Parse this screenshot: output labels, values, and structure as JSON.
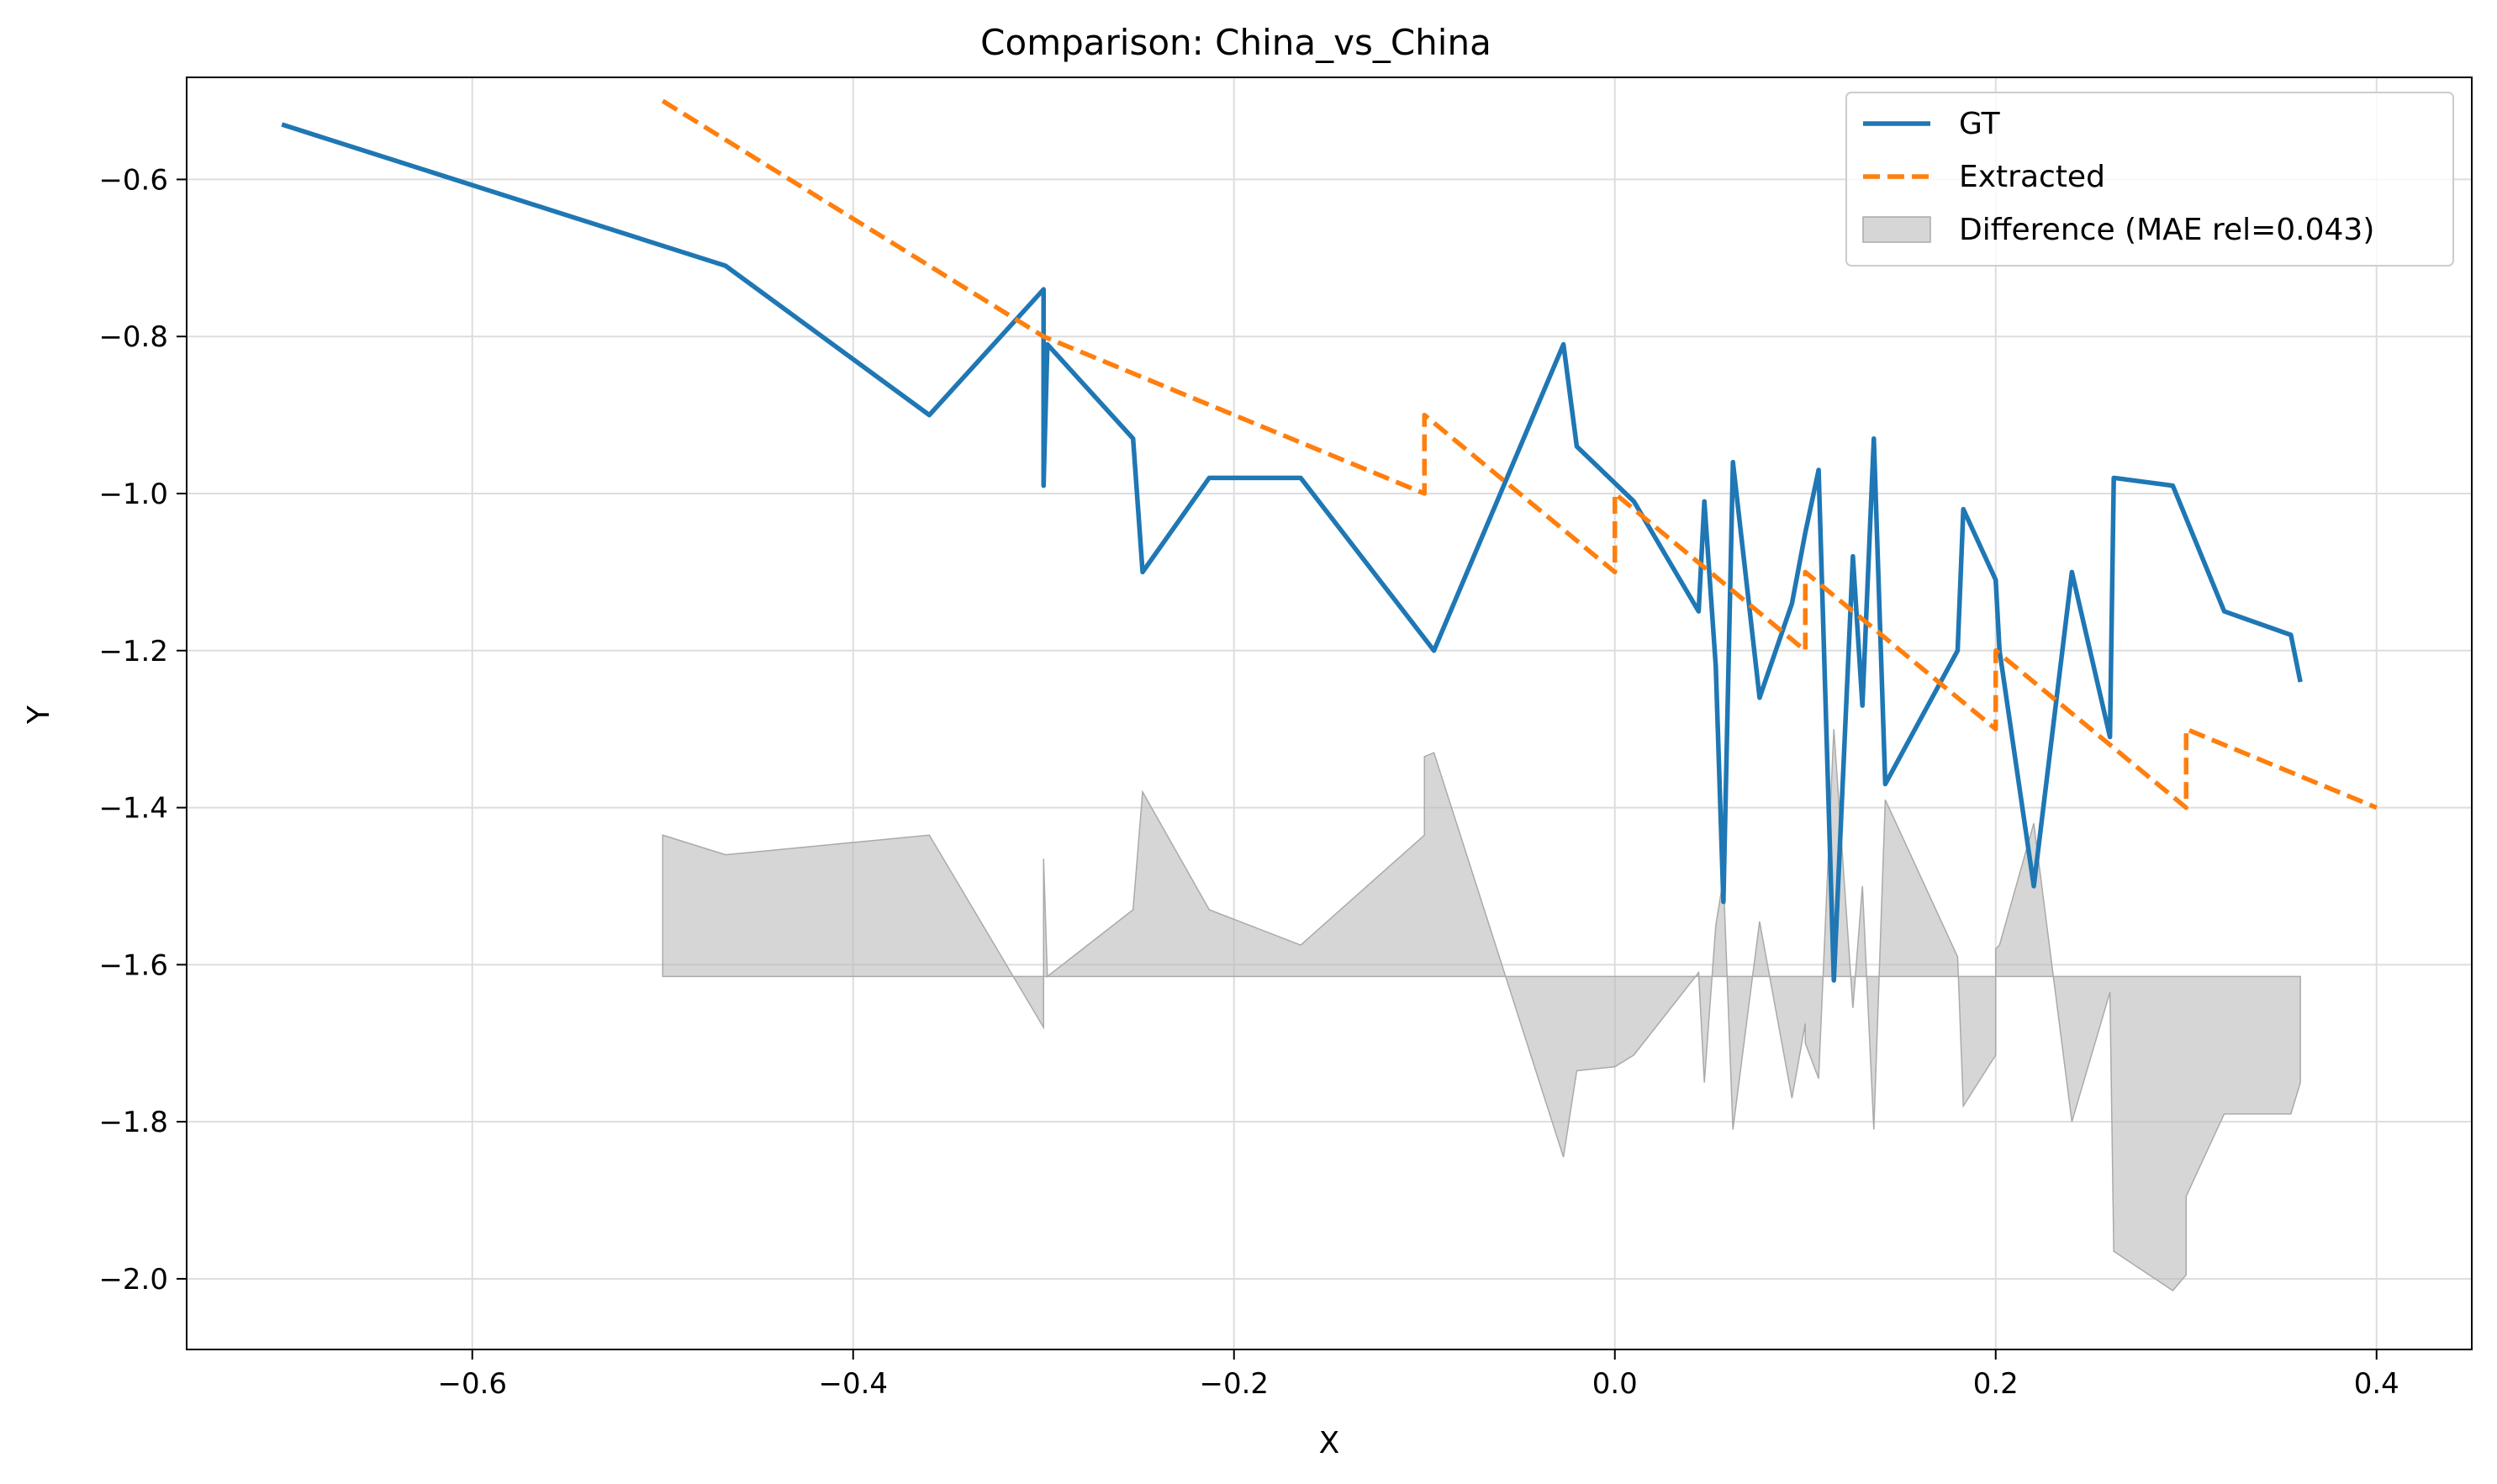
{
  "chart_data": {
    "type": "line",
    "title": "Comparison: China_vs_China",
    "xlabel": "X",
    "ylabel": "Y",
    "xlim": [
      -0.75,
      0.45
    ],
    "ylim": [
      -2.09,
      -0.47
    ],
    "grid": true,
    "legend_position": "top-right",
    "x_ticks": [
      -0.6,
      -0.4,
      -0.2,
      0.0,
      0.2,
      0.4
    ],
    "x_tick_labels": [
      "−0.6",
      "−0.4",
      "−0.2",
      "0.0",
      "0.2",
      "0.4"
    ],
    "y_ticks": [
      -0.6,
      -0.8,
      -1.0,
      -1.2,
      -1.4,
      -1.6,
      -1.8,
      -2.0
    ],
    "y_tick_labels": [
      "−0.6",
      "−0.8",
      "−1.0",
      "−1.2",
      "−1.4",
      "−1.6",
      "−1.8",
      "−2.0"
    ],
    "series": [
      {
        "name": "GT",
        "color": "#1f77b4",
        "style": "solid",
        "x": [
          -0.7,
          -0.467,
          -0.36,
          -0.3,
          -0.3,
          -0.298,
          -0.253,
          -0.248,
          -0.213,
          -0.165,
          -0.095,
          -0.027,
          -0.02,
          0.01,
          0.044,
          0.047,
          0.053,
          0.057,
          0.062,
          0.076,
          0.093,
          0.1,
          0.107,
          0.115,
          0.125,
          0.13,
          0.136,
          0.142,
          0.18,
          0.183,
          0.2,
          0.202,
          0.22,
          0.24,
          0.26,
          0.262,
          0.293,
          0.32,
          0.355,
          0.36
        ],
        "y": [
          -0.53,
          -0.71,
          -0.9,
          -0.74,
          -0.99,
          -0.81,
          -0.93,
          -1.1,
          -0.98,
          -0.98,
          -1.2,
          -0.81,
          -0.94,
          -1.01,
          -1.15,
          -1.01,
          -1.22,
          -1.52,
          -0.96,
          -1.26,
          -1.14,
          -1.05,
          -0.97,
          -1.62,
          -1.08,
          -1.27,
          -0.93,
          -1.37,
          -1.2,
          -1.02,
          -1.11,
          -1.2,
          -1.5,
          -1.1,
          -1.31,
          -0.98,
          -0.99,
          -1.15,
          -1.18,
          -1.24
        ]
      },
      {
        "name": "Extracted",
        "color": "#ff7f0e",
        "style": "dashed",
        "x": [
          -0.5,
          -0.3,
          -0.1,
          -0.1,
          0.0,
          0.0,
          0.1,
          0.1,
          0.2,
          0.2,
          0.3,
          0.3,
          0.4
        ],
        "y": [
          -0.5,
          -0.8,
          -1.0,
          -0.9,
          -1.1,
          -1.0,
          -1.2,
          -1.1,
          -1.3,
          -1.2,
          -1.4,
          -1.3,
          -1.4
        ]
      }
    ],
    "difference": {
      "name": "Difference (MAE rel=0.043)",
      "color": "#bbbbbb",
      "baseline": -1.615,
      "x": [
        -0.5,
        -0.467,
        -0.36,
        -0.3,
        -0.3,
        -0.298,
        -0.253,
        -0.248,
        -0.213,
        -0.165,
        -0.1,
        -0.1,
        -0.095,
        -0.027,
        -0.02,
        0.0,
        0.01,
        0.044,
        0.047,
        0.053,
        0.057,
        0.062,
        0.076,
        0.093,
        0.1,
        0.1,
        0.107,
        0.115,
        0.125,
        0.13,
        0.136,
        0.142,
        0.18,
        0.183,
        0.2,
        0.2,
        0.202,
        0.22,
        0.24,
        0.26,
        0.262,
        0.293,
        0.3,
        0.3,
        0.32,
        0.355,
        0.36,
        0.36
      ],
      "y": [
        -1.435,
        -1.46,
        -1.435,
        -1.68,
        -1.465,
        -1.615,
        -1.53,
        -1.38,
        -1.53,
        -1.575,
        -1.435,
        -1.335,
        -1.33,
        -1.845,
        -1.735,
        -1.73,
        -1.715,
        -1.61,
        -1.75,
        -1.55,
        -1.49,
        -1.81,
        -1.545,
        -1.77,
        -1.675,
        -1.7,
        -1.745,
        -1.3,
        -1.655,
        -1.5,
        -1.81,
        -1.39,
        -1.59,
        -1.78,
        -1.715,
        -1.58,
        -1.575,
        -1.42,
        -1.8,
        -1.635,
        -1.965,
        -2.015,
        -1.995,
        -1.895,
        -1.79,
        -1.79,
        -1.75,
        -1.615
      ]
    }
  }
}
